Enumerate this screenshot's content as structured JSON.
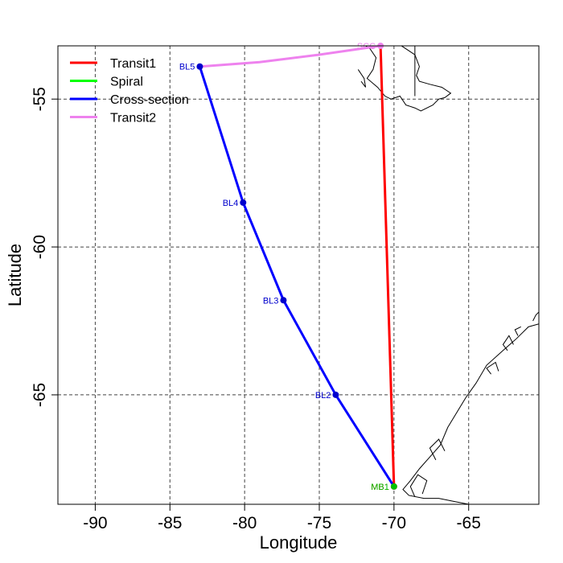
{
  "chart_data": {
    "type": "line",
    "xlabel": "Longitude",
    "ylabel": "Latitude",
    "xlim": [
      -92.5,
      -60.3
    ],
    "ylim": [
      -68.7,
      -53.2
    ],
    "x_ticks": [
      -90,
      -85,
      -80,
      -75,
      -70,
      -65
    ],
    "y_ticks": [
      -55,
      -60,
      -65
    ],
    "grid": true,
    "legend_position": "top-left",
    "series": [
      {
        "name": "Transit1",
        "color": "#ff0000",
        "points": [
          [
            -70.9,
            -53.2
          ],
          [
            -70.0,
            -68.1
          ]
        ]
      },
      {
        "name": "Spiral",
        "color": "#00ff00",
        "points": [
          [
            -70.0,
            -68.1
          ],
          [
            -70.0,
            -68.1
          ]
        ]
      },
      {
        "name": "Cross-section",
        "color": "#0000ff",
        "points": [
          [
            -70.0,
            -68.1
          ],
          [
            -73.9,
            -65.0
          ],
          [
            -77.4,
            -61.8
          ],
          [
            -80.1,
            -58.5
          ],
          [
            -83.0,
            -53.9
          ]
        ]
      },
      {
        "name": "Transit2",
        "color": "#ee82ee",
        "points": [
          [
            -83.0,
            -53.9
          ],
          [
            -79.0,
            -53.75
          ],
          [
            -75.0,
            -53.5
          ],
          [
            -70.9,
            -53.2
          ]
        ]
      }
    ],
    "stations": [
      {
        "label": "BL5",
        "color": "#0000cd",
        "lon": -83.0,
        "lat": -53.9
      },
      {
        "label": "BL4",
        "color": "#0000cd",
        "lon": -80.1,
        "lat": -58.5
      },
      {
        "label": "BL3",
        "color": "#0000cd",
        "lon": -77.4,
        "lat": -61.8
      },
      {
        "label": "BL2",
        "color": "#0000cd",
        "lon": -73.9,
        "lat": -65.0
      },
      {
        "label": "SCC",
        "color": "#ee82ee",
        "lon": -70.9,
        "lat": -53.2
      },
      {
        "label": "MB1",
        "color": "#ff0000",
        "lon": -70.0,
        "lat": -68.1
      },
      {
        "label": "MB1",
        "color": "#00c000",
        "lon": -70.0,
        "lat": -68.1
      }
    ],
    "coastlines": [
      [
        [
          -72.8,
          -52.9
        ],
        [
          -72.2,
          -53.1
        ],
        [
          -71.6,
          -53.3
        ],
        [
          -71.2,
          -53.6
        ],
        [
          -71.4,
          -54.0
        ],
        [
          -71.8,
          -54.3
        ],
        [
          -71.1,
          -54.6
        ],
        [
          -70.6,
          -54.9
        ],
        [
          -70.2,
          -55.0
        ],
        [
          -69.6,
          -54.9
        ],
        [
          -69.2,
          -55.2
        ],
        [
          -68.6,
          -55.3
        ],
        [
          -68.2,
          -55.4
        ],
        [
          -67.4,
          -55.2
        ],
        [
          -67.0,
          -55.0
        ],
        [
          -66.6,
          -54.95
        ],
        [
          -66.2,
          -54.8
        ],
        [
          -66.8,
          -54.6
        ],
        [
          -67.6,
          -54.5
        ],
        [
          -68.3,
          -54.4
        ],
        [
          -68.5,
          -54.2
        ],
        [
          -68.3,
          -53.9
        ],
        [
          -68.6,
          -53.5
        ],
        [
          -69.2,
          -53.3
        ],
        [
          -69.8,
          -53.1
        ],
        [
          -70.2,
          -52.9
        ]
      ],
      [
        [
          -72.4,
          -54.0
        ],
        [
          -72.0,
          -54.3
        ],
        [
          -71.9,
          -54.6
        ],
        [
          -72.2,
          -54.4
        ]
      ],
      [
        [
          -60.3,
          -62.6
        ],
        [
          -61.0,
          -62.7
        ],
        [
          -61.8,
          -63.1
        ],
        [
          -62.7,
          -63.5
        ],
        [
          -63.8,
          -64.0
        ],
        [
          -64.5,
          -64.6
        ],
        [
          -65.2,
          -65.1
        ],
        [
          -65.8,
          -65.6
        ],
        [
          -66.4,
          -66.1
        ],
        [
          -66.9,
          -66.7
        ],
        [
          -67.6,
          -67.1
        ],
        [
          -68.3,
          -67.5
        ],
        [
          -68.9,
          -67.9
        ],
        [
          -69.4,
          -68.2
        ],
        [
          -69.0,
          -68.4
        ],
        [
          -68.0,
          -68.5
        ],
        [
          -67.0,
          -68.5
        ],
        [
          -66.0,
          -68.6
        ],
        [
          -65.0,
          -68.7
        ]
      ],
      [
        [
          -68.6,
          -68.45
        ],
        [
          -68.9,
          -68.1
        ],
        [
          -68.4,
          -67.7
        ],
        [
          -67.8,
          -67.9
        ],
        [
          -68.1,
          -68.35
        ]
      ],
      [
        [
          -67.2,
          -67.2
        ],
        [
          -67.6,
          -66.8
        ],
        [
          -67.0,
          -66.5
        ],
        [
          -66.6,
          -66.9
        ]
      ],
      [
        [
          -62.4,
          -63.5
        ],
        [
          -62.7,
          -63.3
        ],
        [
          -62.3,
          -63.0
        ],
        [
          -62.0,
          -63.3
        ]
      ],
      [
        [
          -63.5,
          -64.3
        ],
        [
          -63.8,
          -64.1
        ],
        [
          -63.2,
          -63.9
        ],
        [
          -63.0,
          -64.2
        ]
      ],
      [
        [
          -60.7,
          -62.5
        ],
        [
          -60.5,
          -62.3
        ],
        [
          -60.3,
          -62.2
        ]
      ],
      [
        [
          -61.7,
          -63.0
        ],
        [
          -61.9,
          -62.8
        ],
        [
          -61.5,
          -62.7
        ]
      ]
    ],
    "borders": [
      [
        [
          -68.6,
          -52.7
        ],
        [
          -68.6,
          -54.9
        ]
      ]
    ]
  }
}
